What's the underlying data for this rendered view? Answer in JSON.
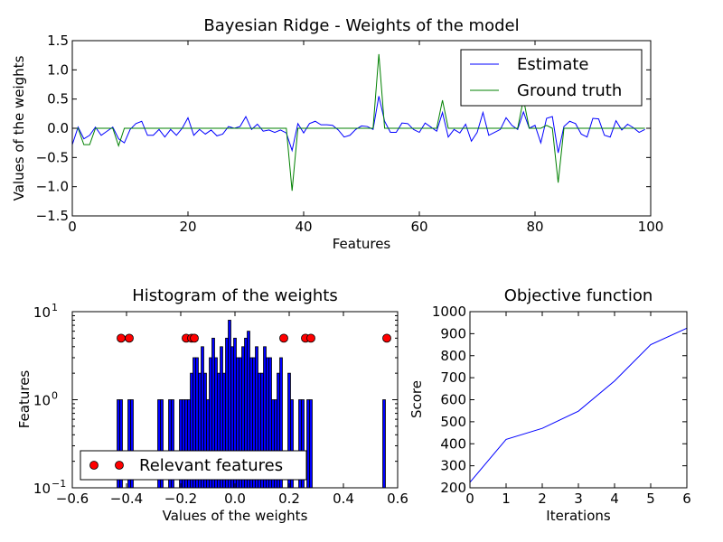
{
  "chart_data": [
    {
      "type": "line",
      "title": "Bayesian Ridge - Weights of the model",
      "xlabel": "Features",
      "ylabel": "Values of the weights",
      "xlim": [
        0,
        100
      ],
      "ylim": [
        -1.5,
        1.5
      ],
      "xticks": [
        "0",
        "20",
        "40",
        "60",
        "80",
        "100"
      ],
      "yticks": [
        "−1.5",
        "−1.0",
        "−0.5",
        "0.0",
        "0.5",
        "1.0",
        "1.5"
      ],
      "grid": false,
      "legend_position": "top-right",
      "series": [
        {
          "name": "Estimate",
          "color": "#0000ff",
          "values": [
            -0.28,
            0.02,
            -0.18,
            -0.12,
            0.02,
            -0.12,
            -0.05,
            0.02,
            -0.18,
            -0.25,
            -0.02,
            0.08,
            0.12,
            -0.12,
            -0.12,
            -0.02,
            -0.15,
            -0.02,
            -0.12,
            0.0,
            0.18,
            -0.12,
            -0.02,
            -0.1,
            -0.03,
            -0.13,
            -0.1,
            0.03,
            0.0,
            0.03,
            0.2,
            -0.02,
            0.07,
            -0.05,
            -0.03,
            -0.07,
            -0.03,
            -0.08,
            -0.38,
            0.08,
            -0.08,
            0.08,
            0.12,
            0.06,
            0.06,
            0.05,
            -0.03,
            -0.15,
            -0.12,
            -0.02,
            0.04,
            0.03,
            -0.02,
            0.55,
            0.12,
            -0.07,
            -0.07,
            0.09,
            0.08,
            -0.02,
            -0.07,
            0.09,
            0.02,
            -0.05,
            0.27,
            -0.15,
            -0.02,
            -0.08,
            0.07,
            -0.22,
            -0.07,
            0.27,
            -0.12,
            -0.07,
            -0.02,
            0.18,
            0.05,
            -0.02,
            0.28,
            0.0,
            0.05,
            -0.25,
            0.17,
            0.2,
            -0.42,
            0.03,
            0.12,
            0.08,
            -0.1,
            -0.15,
            0.17,
            0.16,
            -0.12,
            -0.15,
            0.13,
            -0.03,
            0.07,
            0.01,
            -0.07,
            -0.02
          ]
        },
        {
          "name": "Ground truth",
          "color": "#008000",
          "values": [
            0,
            0,
            -0.28,
            -0.28,
            0,
            0,
            0,
            0,
            -0.3,
            0,
            0,
            0,
            0,
            0,
            0,
            0,
            0,
            0,
            0,
            0,
            0,
            0,
            0,
            0,
            0,
            0,
            0,
            0,
            0,
            0,
            0,
            0,
            0,
            0,
            0,
            0,
            0,
            0,
            -1.07,
            0,
            0,
            0,
            0,
            0,
            0,
            0,
            0,
            0,
            0,
            0,
            0,
            0,
            0,
            1.27,
            0,
            0,
            0,
            0,
            0,
            0,
            0,
            0,
            0,
            0,
            0.48,
            0,
            0,
            0,
            0,
            0,
            0,
            0,
            0,
            0,
            0,
            0,
            0,
            0,
            0.5,
            0,
            0,
            0,
            0.05,
            0,
            -0.93,
            0,
            0,
            0,
            0,
            0,
            0,
            0,
            0,
            0,
            0,
            0,
            0,
            0,
            0,
            0
          ]
        }
      ]
    },
    {
      "type": "bar",
      "subtype": "histogram",
      "title": "Histogram of the weights",
      "xlabel": "Values of the weights",
      "ylabel": "Features",
      "xlim": [
        -0.6,
        0.6
      ],
      "ylim": [
        0.1,
        10
      ],
      "yscale": "log",
      "xticks": [
        "−0.6",
        "−0.4",
        "−0.2",
        "0.0",
        "0.2",
        "0.4",
        "0.6"
      ],
      "yticks": [
        {
          "base": "10",
          "exp": "−1"
        },
        {
          "base": "10",
          "exp": "0"
        },
        {
          "base": "10",
          "exp": "1"
        }
      ],
      "bar_color": "#0000ff",
      "bin_width": 0.0098,
      "bins": [
        {
          "x": -0.43,
          "count": 1
        },
        {
          "x": -0.42,
          "count": 1
        },
        {
          "x": -0.39,
          "count": 1
        },
        {
          "x": -0.38,
          "count": 1
        },
        {
          "x": -0.28,
          "count": 1
        },
        {
          "x": -0.27,
          "count": 1
        },
        {
          "x": -0.24,
          "count": 1
        },
        {
          "x": -0.23,
          "count": 1
        },
        {
          "x": -0.2,
          "count": 1
        },
        {
          "x": -0.19,
          "count": 1
        },
        {
          "x": -0.18,
          "count": 1
        },
        {
          "x": -0.17,
          "count": 1
        },
        {
          "x": -0.16,
          "count": 2
        },
        {
          "x": -0.15,
          "count": 3
        },
        {
          "x": -0.14,
          "count": 3
        },
        {
          "x": -0.13,
          "count": 2
        },
        {
          "x": -0.12,
          "count": 4
        },
        {
          "x": -0.11,
          "count": 2
        },
        {
          "x": -0.1,
          "count": 1
        },
        {
          "x": -0.09,
          "count": 3
        },
        {
          "x": -0.08,
          "count": 5
        },
        {
          "x": -0.07,
          "count": 3
        },
        {
          "x": -0.06,
          "count": 2
        },
        {
          "x": -0.05,
          "count": 4
        },
        {
          "x": -0.04,
          "count": 2
        },
        {
          "x": -0.03,
          "count": 5
        },
        {
          "x": -0.02,
          "count": 8
        },
        {
          "x": -0.01,
          "count": 4
        },
        {
          "x": 0.0,
          "count": 5
        },
        {
          "x": 0.01,
          "count": 3
        },
        {
          "x": 0.02,
          "count": 3
        },
        {
          "x": 0.03,
          "count": 4
        },
        {
          "x": 0.04,
          "count": 5
        },
        {
          "x": 0.05,
          "count": 6
        },
        {
          "x": 0.06,
          "count": 3
        },
        {
          "x": 0.07,
          "count": 3
        },
        {
          "x": 0.08,
          "count": 4
        },
        {
          "x": 0.09,
          "count": 2
        },
        {
          "x": 0.1,
          "count": 2
        },
        {
          "x": 0.11,
          "count": 4
        },
        {
          "x": 0.12,
          "count": 3
        },
        {
          "x": 0.13,
          "count": 3
        },
        {
          "x": 0.14,
          "count": 1
        },
        {
          "x": 0.15,
          "count": 1
        },
        {
          "x": 0.16,
          "count": 2
        },
        {
          "x": 0.17,
          "count": 3
        },
        {
          "x": 0.2,
          "count": 2
        },
        {
          "x": 0.21,
          "count": 1
        },
        {
          "x": 0.24,
          "count": 1
        },
        {
          "x": 0.25,
          "count": 1
        },
        {
          "x": 0.27,
          "count": 1
        },
        {
          "x": 0.28,
          "count": 1
        },
        {
          "x": 0.55,
          "count": 1
        }
      ],
      "scatter": {
        "name": "Relevant features",
        "color": "#ff0000",
        "y": 5,
        "x": [
          -0.42,
          -0.39,
          -0.18,
          -0.16,
          -0.15,
          0.18,
          0.26,
          0.28,
          0.56
        ]
      },
      "legend_position": "bottom-left"
    },
    {
      "type": "line",
      "title": "Objective function",
      "xlabel": "Iterations",
      "ylabel": "Score",
      "xlim": [
        0,
        6
      ],
      "ylim": [
        200,
        1000
      ],
      "xticks": [
        "0",
        "1",
        "2",
        "3",
        "4",
        "5",
        "6"
      ],
      "yticks": [
        "200",
        "300",
        "400",
        "500",
        "600",
        "700",
        "800",
        "900",
        "1000"
      ],
      "series": [
        {
          "color": "#0000ff",
          "x": [
            0,
            1,
            2,
            3,
            4,
            5,
            6
          ],
          "values": [
            225,
            420,
            470,
            548,
            685,
            850,
            925
          ]
        }
      ]
    }
  ]
}
